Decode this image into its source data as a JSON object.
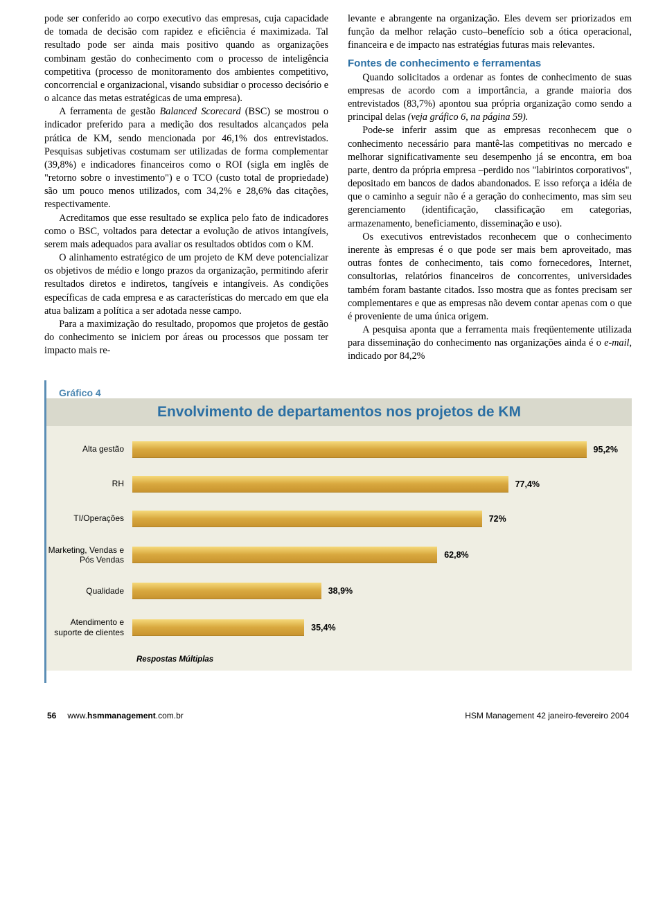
{
  "left_column": {
    "p1": "pode ser conferido ao corpo executivo das empresas, cuja capacidade de tomada de decisão com rapidez e eficiência é maximizada. Tal resultado pode ser ainda mais positivo quando as organizações combinam gestão do conhecimento com o processo de inteligência competitiva (processo de monitoramento dos ambientes competitivo, concorrencial e organizacional, visando subsidiar o processo decisório e o alcance das metas estratégicas de uma empresa).",
    "p2a": "A ferramenta de gestão ",
    "p2b": "Balanced Scorecard",
    "p2c": " (BSC) se mostrou o indicador preferido para a medição dos resultados alcançados pela prática de KM, sendo mencionada por 46,1% dos entrevistados. Pesquisas subjetivas costumam ser utilizadas de forma complementar (39,8%) e indicadores financeiros como o ROI (sigla em inglês de \"retorno sobre o investimento\") e o TCO (custo total de propriedade) são um pouco menos utilizados, com 34,2% e 28,6% das citações, respectivamente.",
    "p3": "Acreditamos que esse resultado se explica pelo fato de indicadores como o BSC, voltados para detectar a evolução de ativos intangíveis, serem mais adequados para avaliar os resultados obtidos com o KM.",
    "p4": "O alinhamento estratégico de um projeto de KM deve potencializar os objetivos de médio e longo prazos da organização, permitindo aferir resultados diretos e indiretos, tangíveis e intangíveis. As condições específicas de cada empresa e as características do mercado em que ela atua balizam a política a ser adotada nesse campo.",
    "p5": "Para a maximização do resultado, propomos que projetos de gestão do conhecimento se iniciem por áreas ou processos que possam ter impacto mais re-"
  },
  "right_column": {
    "p1": "levante e abrangente na organização. Eles devem ser priorizados em função da melhor relação custo–benefício sob a ótica operacional, financeira e de impacto nas estratégias futuras mais relevantes.",
    "heading": "Fontes de conhecimento e ferramentas",
    "p2a": "Quando solicitados a ordenar as fontes de conhecimento de suas empresas de acordo com a importância, a grande maioria dos entrevistados (83,7%) apontou sua própria organização como sendo a principal delas ",
    "p2b": "(veja gráfico 6, na página 59).",
    "p3": "Pode-se inferir assim que as empresas reconhecem que o conhecimento necessário para mantê-las competitivas no mercado e melhorar significativamente seu desempenho já se encontra, em boa parte, dentro da própria empresa –perdido nos \"labirintos corporativos\", depositado em bancos de dados abandonados. E isso reforça a idéia de que o caminho a seguir não é a geração do conhecimento, mas sim seu gerenciamento (identificação, classificação em categorias, armazenamento, beneficiamento, disseminação e uso).",
    "p4": "Os executivos entrevistados reconhecem que o conhecimento inerente às empresas é o que pode ser mais bem aproveitado, mas outras fontes de conhecimento, tais como fornecedores, Internet, consultorias, relatórios financeiros de concorrentes, universidades também foram bastante citados. Isso mostra que as fontes precisam ser complementares e que as empresas não devem contar apenas com o que é proveniente de uma única origem.",
    "p5a": "A pesquisa aponta que a ferramenta mais freqüentemente utilizada para disseminação do conhecimento nas organizações ainda é o ",
    "p5b": "e-mail",
    "p5c": ", indicado por 84,2%"
  },
  "chart": {
    "label": "Gráfico 4",
    "title": "Envolvimento de departamentos nos projetos de KM",
    "note": "Respostas Múltiplas",
    "type": "bar",
    "background_color": "#efeee3",
    "title_band_color": "#d9d9cc",
    "title_color": "#2b6fa3",
    "bar_gradient_top": "#f5d97a",
    "bar_gradient_mid": "#d9a93f",
    "bar_gradient_bottom": "#c8932f",
    "label_fontsize": 12,
    "value_fontsize": 12.5,
    "title_fontsize": 21,
    "max_value": 100,
    "bars": [
      {
        "label": "Alta gestão",
        "value": 95.2,
        "value_label": "95,2%"
      },
      {
        "label": "RH",
        "value": 77.4,
        "value_label": "77,4%"
      },
      {
        "label": "TI/Operações",
        "value": 72,
        "value_label": "72%"
      },
      {
        "label": "Marketing, Vendas e Pós Vendas",
        "value": 62.8,
        "value_label": "62,8%"
      },
      {
        "label": "Qualidade",
        "value": 38.9,
        "value_label": "38,9%"
      },
      {
        "label": "Atendimento e suporte de clientes",
        "value": 35.4,
        "value_label": "35,4%"
      }
    ]
  },
  "footer": {
    "page_number": "56",
    "url_prefix": "www.",
    "url_bold": "hsmmanagement",
    "url_suffix": ".com.br",
    "right": "HSM Management 42 janeiro-fevereiro 2004"
  }
}
